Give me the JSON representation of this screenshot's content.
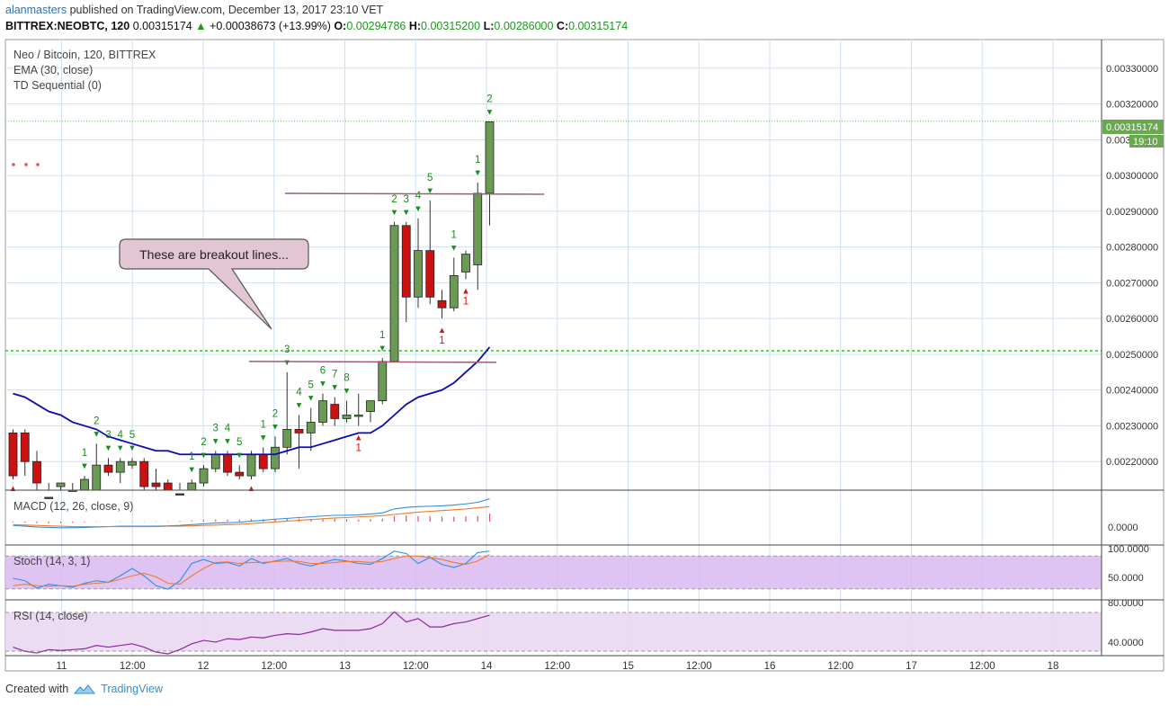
{
  "header": {
    "user": "alanmasters",
    "published": "published on TradingView.com, December 13, 2017 23:10 VET"
  },
  "quote": {
    "symbol": "BITTREX:NEOBTC, 120",
    "last": "0.00315174",
    "change": "+0.00038673 (+13.99%)",
    "o_label": "O:",
    "o": "0.00294786",
    "h_label": "H:",
    "h": "0.00315200",
    "l_label": "L:",
    "l": "0.00286000",
    "c_label": "C:",
    "c": "0.00315174"
  },
  "legend": {
    "symbol": "Neo / Bitcoin, 120, BITTREX",
    "ema": "EMA (30, close)",
    "td": "TD Sequential (0)"
  },
  "annotation": {
    "text": "These are breakout lines..."
  },
  "price_badge": {
    "value": "0.00315174",
    "time": "19:10"
  },
  "panes": {
    "macd": "MACD (12, 26, close, 9)",
    "stoch": "Stoch (14, 3, 1)",
    "rsi": "RSI (14, close)"
  },
  "footer": {
    "created": "Created with",
    "brand": "TradingView"
  },
  "colors": {
    "up": "#6b9a55",
    "down": "#cc1111",
    "ema": "#0a0ab8",
    "grid": "#cfe0f2",
    "td_green": "#1a8a1a",
    "td_red": "#e01010",
    "breakout": "#a05a7a",
    "hline": "#33cc33",
    "badge": "#6aa84f",
    "band": "#d9b8f0"
  },
  "chart_data": {
    "type": "candlestick",
    "price_axis": {
      "range": [
        0.00212,
        0.00338
      ],
      "ticks": [
        "0.00330000",
        "0.00320000",
        "0.00310000",
        "0.00300000",
        "0.00290000",
        "0.00280000",
        "0.00270000",
        "0.00260000",
        "0.00250000",
        "0.00240000",
        "0.00230000",
        "0.00220000"
      ]
    },
    "time_axis": {
      "ticks": [
        "11",
        "12:00",
        "12",
        "12:00",
        "13",
        "12:00",
        "14",
        "12:00",
        "15",
        "12:00",
        "16",
        "12:00",
        "17",
        "12:00",
        "18"
      ]
    },
    "candles": [
      [
        0.00228,
        0.00229,
        0.00215,
        0.00216
      ],
      [
        0.00228,
        0.00229,
        0.00216,
        0.0022
      ],
      [
        0.0022,
        0.00223,
        0.00212,
        0.00214
      ],
      [
        0.0021,
        0.00214,
        0.00206,
        0.00208
      ],
      [
        0.00213,
        0.00214,
        0.0021,
        0.00214
      ],
      [
        0.00209,
        0.00214,
        0.00207,
        0.00212
      ],
      [
        0.00209,
        0.00216,
        0.00206,
        0.00215
      ],
      [
        0.00212,
        0.00225,
        0.00211,
        0.00219
      ],
      [
        0.00219,
        0.00221,
        0.00216,
        0.00217
      ],
      [
        0.00217,
        0.00221,
        0.00214,
        0.0022
      ],
      [
        0.00219,
        0.00221,
        0.00218,
        0.0022
      ],
      [
        0.0022,
        0.00221,
        0.00212,
        0.00213
      ],
      [
        0.00214,
        0.00218,
        0.00212,
        0.00213
      ],
      [
        0.00214,
        0.00215,
        0.0021,
        0.00211
      ],
      [
        0.00211,
        0.00214,
        0.00209,
        0.0021
      ],
      [
        0.0021,
        0.00215,
        0.00209,
        0.00214
      ],
      [
        0.00214,
        0.00219,
        0.00213,
        0.00218
      ],
      [
        0.00218,
        0.00223,
        0.00217,
        0.00222
      ],
      [
        0.00222,
        0.00223,
        0.00216,
        0.00217
      ],
      [
        0.00217,
        0.00219,
        0.00215,
        0.00216
      ],
      [
        0.00216,
        0.00223,
        0.00215,
        0.00222
      ],
      [
        0.00222,
        0.00224,
        0.00217,
        0.00218
      ],
      [
        0.00218,
        0.00227,
        0.00217,
        0.00224
      ],
      [
        0.00224,
        0.00245,
        0.00222,
        0.00229
      ],
      [
        0.00229,
        0.00233,
        0.00218,
        0.00228
      ],
      [
        0.00228,
        0.00235,
        0.00223,
        0.00231
      ],
      [
        0.00231,
        0.00239,
        0.0023,
        0.00237
      ],
      [
        0.00236,
        0.00238,
        0.0023,
        0.00232
      ],
      [
        0.00232,
        0.00237,
        0.00231,
        0.00233
      ],
      [
        0.00233,
        0.00239,
        0.0023,
        0.00233
      ],
      [
        0.00234,
        0.00236,
        0.00231,
        0.00237
      ],
      [
        0.00237,
        0.00249,
        0.00236,
        0.00248
      ],
      [
        0.00248,
        0.00287,
        0.00248,
        0.00286
      ],
      [
        0.00286,
        0.00287,
        0.00259,
        0.00266
      ],
      [
        0.00266,
        0.00288,
        0.00263,
        0.00279
      ],
      [
        0.00279,
        0.00293,
        0.00264,
        0.00266
      ],
      [
        0.00265,
        0.00268,
        0.0026,
        0.00263
      ],
      [
        0.00263,
        0.00277,
        0.00262,
        0.00272
      ],
      [
        0.00273,
        0.00279,
        0.00271,
        0.00278
      ],
      [
        0.00275,
        0.00298,
        0.00268,
        0.00295
      ],
      [
        0.00295,
        0.00315,
        0.00286,
        0.00315
      ]
    ],
    "ema_30": [
      0.00239,
      0.00238,
      0.00236,
      0.00234,
      0.00233,
      0.00231,
      0.0023,
      0.00229,
      0.00227,
      0.00226,
      0.00225,
      0.00224,
      0.00223,
      0.00223,
      0.00222,
      0.00222,
      0.00222,
      0.00222,
      0.00222,
      0.00222,
      0.00222,
      0.00222,
      0.00222,
      0.00223,
      0.00224,
      0.00224,
      0.00225,
      0.00226,
      0.00227,
      0.00228,
      0.00228,
      0.0023,
      0.00233,
      0.00236,
      0.00238,
      0.00239,
      0.0024,
      0.00242,
      0.00245,
      0.00248,
      0.00252
    ],
    "td_up_counts": [
      "",
      "",
      "",
      "",
      "",
      "",
      "1",
      "2",
      "3",
      "4",
      "5",
      "",
      "",
      "",
      "",
      "1",
      "2",
      "3",
      "4",
      "5",
      "",
      "1",
      "2",
      "3",
      "4",
      "5",
      "6",
      "7",
      "8",
      "",
      "",
      "1",
      "2",
      "3",
      "4",
      "5",
      "",
      "1",
      "",
      "1",
      "2"
    ],
    "td_down_counts": [
      "1",
      "",
      "",
      "",
      "",
      "",
      "",
      "",
      "",
      "",
      "",
      "",
      "",
      "",
      "",
      "",
      "",
      "",
      "",
      "",
      "1",
      "",
      "",
      "",
      "",
      "",
      "",
      "",
      "",
      "1",
      "",
      "",
      "",
      "",
      "",
      "",
      "1",
      "",
      "1",
      "",
      ""
    ],
    "breakout_levels": [
      0.00295,
      0.00248
    ],
    "horizontal_levels": [
      0.00315174,
      0.00251
    ],
    "macd": {
      "scale": [
        -6e-05,
        8e-05
      ],
      "tick": "0.0000",
      "macd": [
        -1e-05,
        -1.2e-05,
        -1.4e-05,
        -1.5e-05,
        -1.6e-05,
        -1.6e-05,
        -1.5e-05,
        -1.4e-05,
        -1.3e-05,
        -1.2e-05,
        -1.2e-05,
        -1.2e-05,
        -1.2e-05,
        -1.1e-05,
        -1e-05,
        -8e-06,
        -6e-06,
        -4e-06,
        -3e-06,
        -2e-06,
        1e-06,
        3e-06,
        6e-06,
        8e-06,
        1e-05,
        1.2e-05,
        1.4e-05,
        1.6e-05,
        1.6e-05,
        1.7e-05,
        1.9e-05,
        2.2e-05,
        3.2e-05,
        3.6e-05,
        3.8e-05,
        3.9e-05,
        4e-05,
        4.2e-05,
        4.5e-05,
        4.9e-05,
        5.8e-05
      ],
      "signal": [
        -8e-06,
        -9e-06,
        -1e-05,
        -1.1e-05,
        -1.2e-05,
        -1.3e-05,
        -1.3e-05,
        -1.3e-05,
        -1.3e-05,
        -1.3e-05,
        -1.3e-05,
        -1.3e-05,
        -1.3e-05,
        -1.2e-05,
        -1.2e-05,
        -1.1e-05,
        -1e-05,
        -9e-06,
        -8e-06,
        -7e-06,
        -5e-06,
        -3e-06,
        -1e-06,
        1e-06,
        3e-06,
        5e-06,
        7e-06,
        9e-06,
        1e-05,
        1.2e-05,
        1.3e-05,
        1.5e-05,
        1.8e-05,
        2.1e-05,
        2.4e-05,
        2.6e-05,
        2.8e-05,
        3e-05,
        3.2e-05,
        3.5e-05,
        3.8e-05
      ],
      "hist": [
        -2e-06,
        -3e-06,
        -4e-06,
        -4e-06,
        -4e-06,
        -3e-06,
        -2e-06,
        -1e-06,
        0,
        1e-06,
        1e-06,
        1e-06,
        1e-06,
        1e-06,
        2e-06,
        3e-06,
        4e-06,
        5e-06,
        5e-06,
        5e-06,
        6e-06,
        6e-06,
        7e-06,
        7e-06,
        7e-06,
        7e-06,
        7e-06,
        7e-06,
        6e-06,
        5e-06,
        6e-06,
        7e-06,
        1.4e-05,
        1.5e-05,
        1.4e-05,
        1.3e-05,
        1.2e-05,
        1.2e-05,
        1.3e-05,
        1.4e-05,
        2e-05
      ]
    },
    "stoch": {
      "range": [
        0,
        100
      ],
      "band": [
        20,
        80
      ],
      "ticks": [
        "100.0000",
        "50.0000"
      ],
      "k": [
        40,
        35,
        20,
        28,
        25,
        22,
        30,
        35,
        32,
        45,
        60,
        45,
        25,
        18,
        35,
        70,
        78,
        70,
        72,
        65,
        80,
        70,
        75,
        80,
        70,
        65,
        72,
        78,
        75,
        70,
        68,
        80,
        95,
        90,
        70,
        82,
        68,
        62,
        70,
        92,
        95
      ],
      "d": [
        25,
        28,
        25,
        24,
        25,
        24,
        28,
        30,
        32,
        38,
        45,
        50,
        43,
        30,
        28,
        45,
        60,
        72,
        73,
        70,
        72,
        72,
        74,
        75,
        74,
        70,
        70,
        72,
        74,
        74,
        72,
        74,
        80,
        85,
        85,
        82,
        78,
        72,
        68,
        75,
        88
      ]
    },
    "rsi": {
      "range": [
        30,
        90
      ],
      "band": [
        30,
        70
      ],
      "ticks": [
        "80.0000",
        "40.0000"
      ],
      "rsi": [
        38,
        33,
        31,
        35,
        34,
        35,
        36,
        40,
        38,
        40,
        42,
        38,
        32,
        30,
        35,
        42,
        46,
        44,
        48,
        47,
        50,
        49,
        52,
        54,
        53,
        56,
        60,
        58,
        58,
        58,
        60,
        66,
        80,
        68,
        72,
        62,
        62,
        66,
        68,
        72,
        76
      ]
    }
  }
}
